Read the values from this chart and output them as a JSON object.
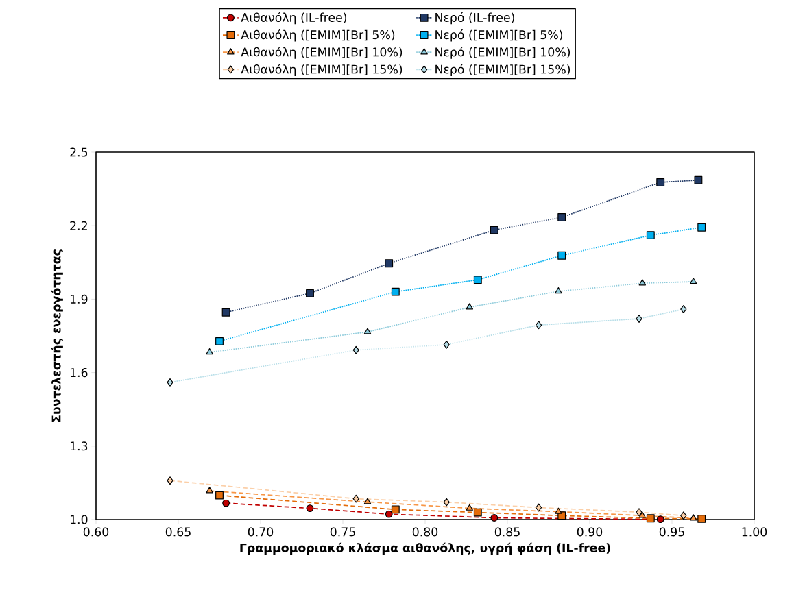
{
  "chart_data": {
    "type": "line",
    "xlabel": "Γραμμομοριακό κλάσμα αιθανόλης, υγρή φάση (IL-free)",
    "ylabel": "Συντελεστής ενεργότητας",
    "xlim": [
      0.6,
      1.0
    ],
    "ylim": [
      1.0,
      2.5
    ],
    "xticks": [
      {
        "value": 0.6,
        "label": "0.60"
      },
      {
        "value": 0.65,
        "label": "0.65"
      },
      {
        "value": 0.7,
        "label": "0.70"
      },
      {
        "value": 0.75,
        "label": "0.75"
      },
      {
        "value": 0.8,
        "label": "0.80"
      },
      {
        "value": 0.85,
        "label": "0.85"
      },
      {
        "value": 0.9,
        "label": "0.90"
      },
      {
        "value": 0.95,
        "label": "0.95"
      },
      {
        "value": 1.0,
        "label": "1.00"
      }
    ],
    "yticks": [
      {
        "value": 1.0,
        "label": "1.0"
      },
      {
        "value": 1.3,
        "label": "1.3"
      },
      {
        "value": 1.6,
        "label": "1.6"
      },
      {
        "value": 1.9,
        "label": "1.9"
      },
      {
        "value": 2.2,
        "label": "2.2"
      },
      {
        "value": 2.5,
        "label": "2.5"
      }
    ],
    "grid": false,
    "legend": "top",
    "series": [
      {
        "name": "Αιθανόλη (IL-free)",
        "color": "#c00000",
        "marker": "circle",
        "line_style": "dashed",
        "x": [
          0.679,
          0.73,
          0.778,
          0.842,
          0.943
        ],
        "values": [
          1.067,
          1.046,
          1.022,
          1.007,
          1.001
        ]
      },
      {
        "name": "Αιθανόλη ([EMIM][Br] 5%)",
        "color": "#e46c0a",
        "marker": "square",
        "line_style": "dashed",
        "x": [
          0.675,
          0.782,
          0.832,
          0.883,
          0.937,
          0.968
        ],
        "values": [
          1.099,
          1.041,
          1.029,
          1.016,
          1.005,
          1.003
        ]
      },
      {
        "name": "Αιθανόλη ([EMIM][Br] 10%)",
        "color": "#f79646",
        "marker": "triangle",
        "line_style": "dashed",
        "x": [
          0.669,
          0.765,
          0.827,
          0.881,
          0.932,
          0.963
        ],
        "values": [
          1.117,
          1.072,
          1.046,
          1.032,
          1.016,
          1.005
        ]
      },
      {
        "name": "Αιθανόλη ([EMIM][Br] 15%)",
        "color": "#fbcfa8",
        "marker": "diamond",
        "line_style": "dashed",
        "x": [
          0.645,
          0.758,
          0.813,
          0.869,
          0.93,
          0.957
        ],
        "values": [
          1.159,
          1.085,
          1.071,
          1.049,
          1.03,
          1.016
        ]
      },
      {
        "name": "Νερό (IL-free)",
        "color": "#203864",
        "marker": "square",
        "line_style": "dotted",
        "x": [
          0.679,
          0.73,
          0.778,
          0.842,
          0.883,
          0.943,
          0.966
        ],
        "values": [
          1.846,
          1.924,
          2.046,
          2.182,
          2.234,
          2.377,
          2.386
        ]
      },
      {
        "name": "Νερό ([EMIM][Br] 5%)",
        "color": "#00b0f0",
        "marker": "square",
        "line_style": "dotted",
        "x": [
          0.675,
          0.782,
          0.832,
          0.883,
          0.937,
          0.968
        ],
        "values": [
          1.728,
          1.93,
          1.979,
          2.078,
          2.161,
          2.193
        ]
      },
      {
        "name": "Νερό ([EMIM][Br] 10%)",
        "color": "#8ecbdb",
        "marker": "triangle",
        "line_style": "dotted",
        "x": [
          0.669,
          0.765,
          0.827,
          0.881,
          0.932,
          0.963
        ],
        "values": [
          1.683,
          1.766,
          1.867,
          1.932,
          1.965,
          1.971
        ]
      },
      {
        "name": "Νερό ([EMIM][Br] 15%)",
        "color": "#b7dee8",
        "marker": "diamond",
        "line_style": "dotted",
        "x": [
          0.645,
          0.758,
          0.813,
          0.869,
          0.93,
          0.957
        ],
        "values": [
          1.56,
          1.692,
          1.714,
          1.794,
          1.82,
          1.859
        ]
      }
    ]
  }
}
